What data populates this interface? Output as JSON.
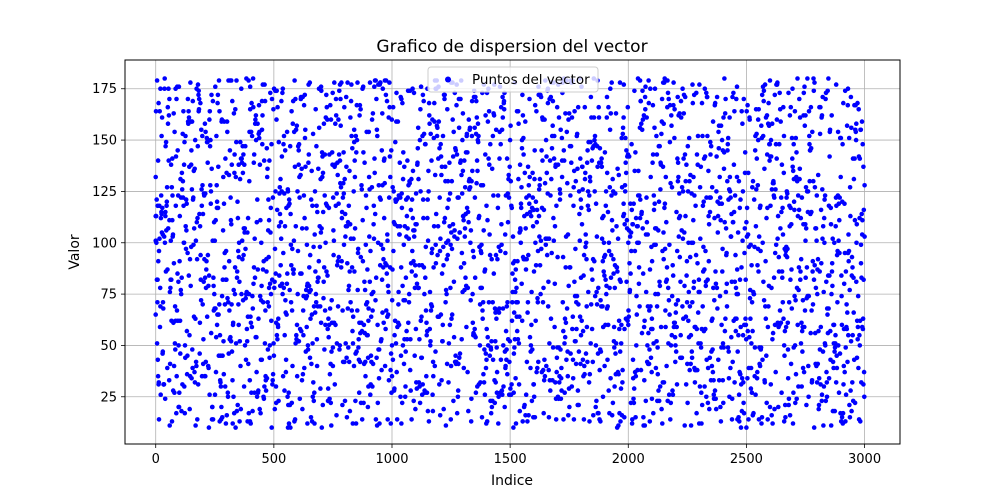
{
  "chart_data": {
    "type": "scatter",
    "title": "Grafico de dispersion del vector",
    "xlabel": "Indice",
    "ylabel": "Valor",
    "xlim": [
      -130,
      3150
    ],
    "ylim": [
      2,
      189
    ],
    "xticks": [
      0,
      500,
      1000,
      1500,
      2000,
      2500,
      3000
    ],
    "yticks": [
      25,
      50,
      75,
      100,
      125,
      150,
      175
    ],
    "grid": true,
    "legend": {
      "placement": "top-center"
    },
    "marker_color": "#0000ff",
    "series": [
      {
        "name": "Puntos del vector",
        "n_points": 3000,
        "x_start": 0,
        "x_step": 1,
        "y_min": 10,
        "y_max": 180,
        "points_sample": [
          [
            0,
            132
          ],
          [
            0,
            113
          ],
          [
            0,
            65
          ],
          [
            6,
            179
          ],
          [
            8,
            82
          ],
          [
            10,
            140
          ],
          [
            12,
            31
          ],
          [
            14,
            14
          ],
          [
            20,
            175
          ],
          [
            25,
            152
          ],
          [
            30,
            47
          ],
          [
            41,
            115
          ],
          [
            58,
            170
          ],
          [
            70,
            141
          ],
          [
            84,
            62
          ],
          [
            97,
            20
          ],
          [
            120,
            138
          ],
          [
            150,
            98
          ],
          [
            182,
            174
          ],
          [
            210,
            35
          ],
          [
            260,
            120
          ],
          [
            320,
            179
          ],
          [
            351,
            60
          ],
          [
            400,
            176
          ],
          [
            450,
            155
          ],
          [
            480,
            78
          ],
          [
            510,
            22
          ],
          [
            560,
            125
          ],
          [
            605,
            145
          ],
          [
            640,
            99
          ],
          [
            700,
            176
          ],
          [
            750,
            49
          ],
          [
            780,
            177
          ],
          [
            840,
            155
          ],
          [
            900,
            62
          ],
          [
            950,
            178
          ],
          [
            960,
            128
          ],
          [
            980,
            104
          ],
          [
            1000,
            50
          ],
          [
            1040,
            170
          ],
          [
            1100,
            84
          ],
          [
            1150,
            175
          ],
          [
            1185,
            175
          ],
          [
            1250,
            40
          ],
          [
            1300,
            163
          ],
          [
            1350,
            58
          ],
          [
            1400,
            118
          ],
          [
            1480,
            95
          ],
          [
            1520,
            178
          ],
          [
            1550,
            150
          ],
          [
            1600,
            31
          ],
          [
            1660,
            175
          ],
          [
            1720,
            140
          ],
          [
            1800,
            55
          ],
          [
            1870,
            179
          ],
          [
            1910,
            68
          ],
          [
            1980,
            119
          ],
          [
            2000,
            100
          ],
          [
            2050,
            179
          ],
          [
            2100,
            24
          ],
          [
            2150,
            158
          ],
          [
            2210,
            130
          ],
          [
            2280,
            39
          ],
          [
            2330,
            173
          ],
          [
            2400,
            145
          ],
          [
            2460,
            176
          ],
          [
            2500,
            10
          ],
          [
            2550,
            160
          ],
          [
            2600,
            179
          ],
          [
            2660,
            50
          ],
          [
            2700,
            148
          ],
          [
            2750,
            101
          ],
          [
            2820,
            162
          ],
          [
            2880,
            177
          ],
          [
            2930,
            95
          ],
          [
            2965,
            158
          ],
          [
            2980,
            141
          ],
          [
            2985,
            90
          ],
          [
            2990,
            59
          ],
          [
            2995,
            31
          ],
          [
            3000,
            128
          ],
          [
            3000,
            103
          ]
        ]
      }
    ]
  }
}
